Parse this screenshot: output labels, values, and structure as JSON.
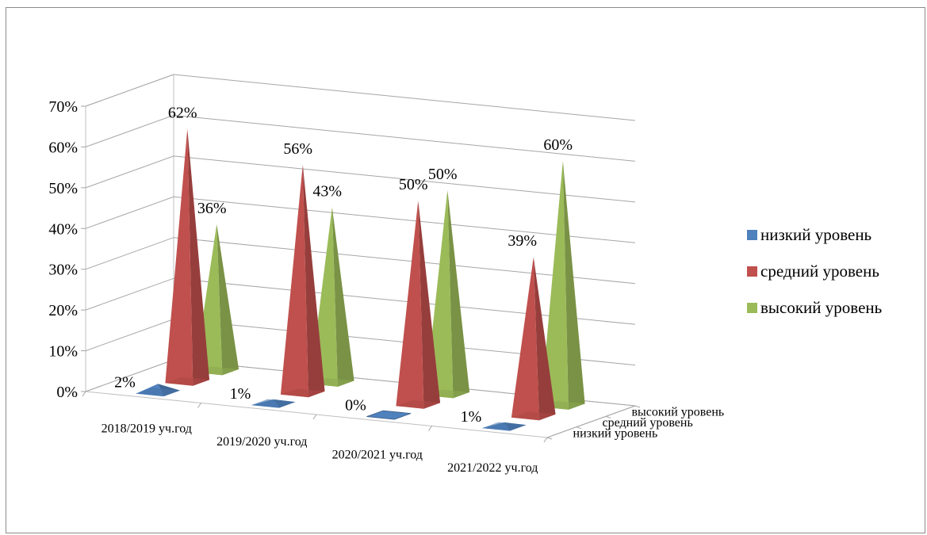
{
  "chart_data": {
    "type": "bar",
    "subtype": "3d-pyramid",
    "title": "",
    "categories": [
      "2018/2019 уч.год",
      "2019/2020 уч.год",
      "2020/2021 уч.год",
      "2021/2022 уч.год"
    ],
    "series": [
      {
        "name": "низкий уровень",
        "color": "#4f81bd",
        "values": [
          2,
          1,
          0,
          1
        ],
        "labels": [
          "2%",
          "1%",
          "0%",
          "1%"
        ]
      },
      {
        "name": "средний уровень",
        "color": "#c0504d",
        "values": [
          62,
          56,
          50,
          39
        ],
        "labels": [
          "62%",
          "56%",
          "50%",
          "39%"
        ]
      },
      {
        "name": "высокий уровень",
        "color": "#9bbb59",
        "values": [
          36,
          43,
          50,
          60
        ],
        "labels": [
          "36%",
          "43%",
          "50%",
          "60%"
        ]
      }
    ],
    "y_ticks": [
      "0%",
      "10%",
      "20%",
      "30%",
      "40%",
      "50%",
      "60%",
      "70%"
    ],
    "ylim": [
      0,
      70
    ],
    "depth_labels": [
      "высокий уровень",
      "средний уровень",
      "низкий уровень"
    ],
    "grid": true,
    "legend_position": "right"
  }
}
